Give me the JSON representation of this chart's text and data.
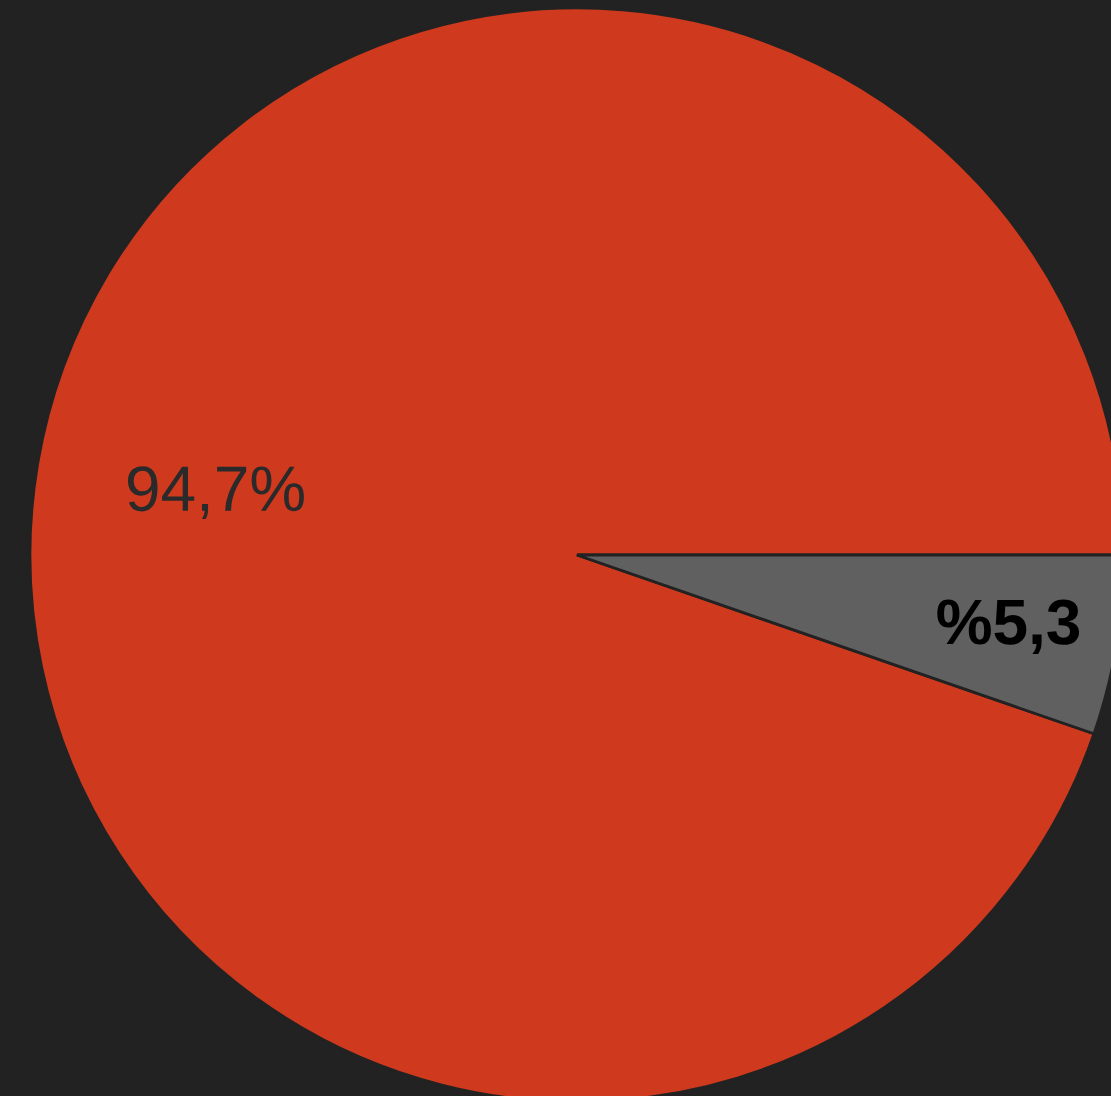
{
  "chart_data": {
    "type": "pie",
    "categories": [
      null,
      null
    ],
    "values": [
      94.7,
      5.3
    ],
    "colors": [
      "#cf3a1e",
      "#606060"
    ],
    "value_labels": [
      "94,7%",
      "%5,3"
    ]
  }
}
